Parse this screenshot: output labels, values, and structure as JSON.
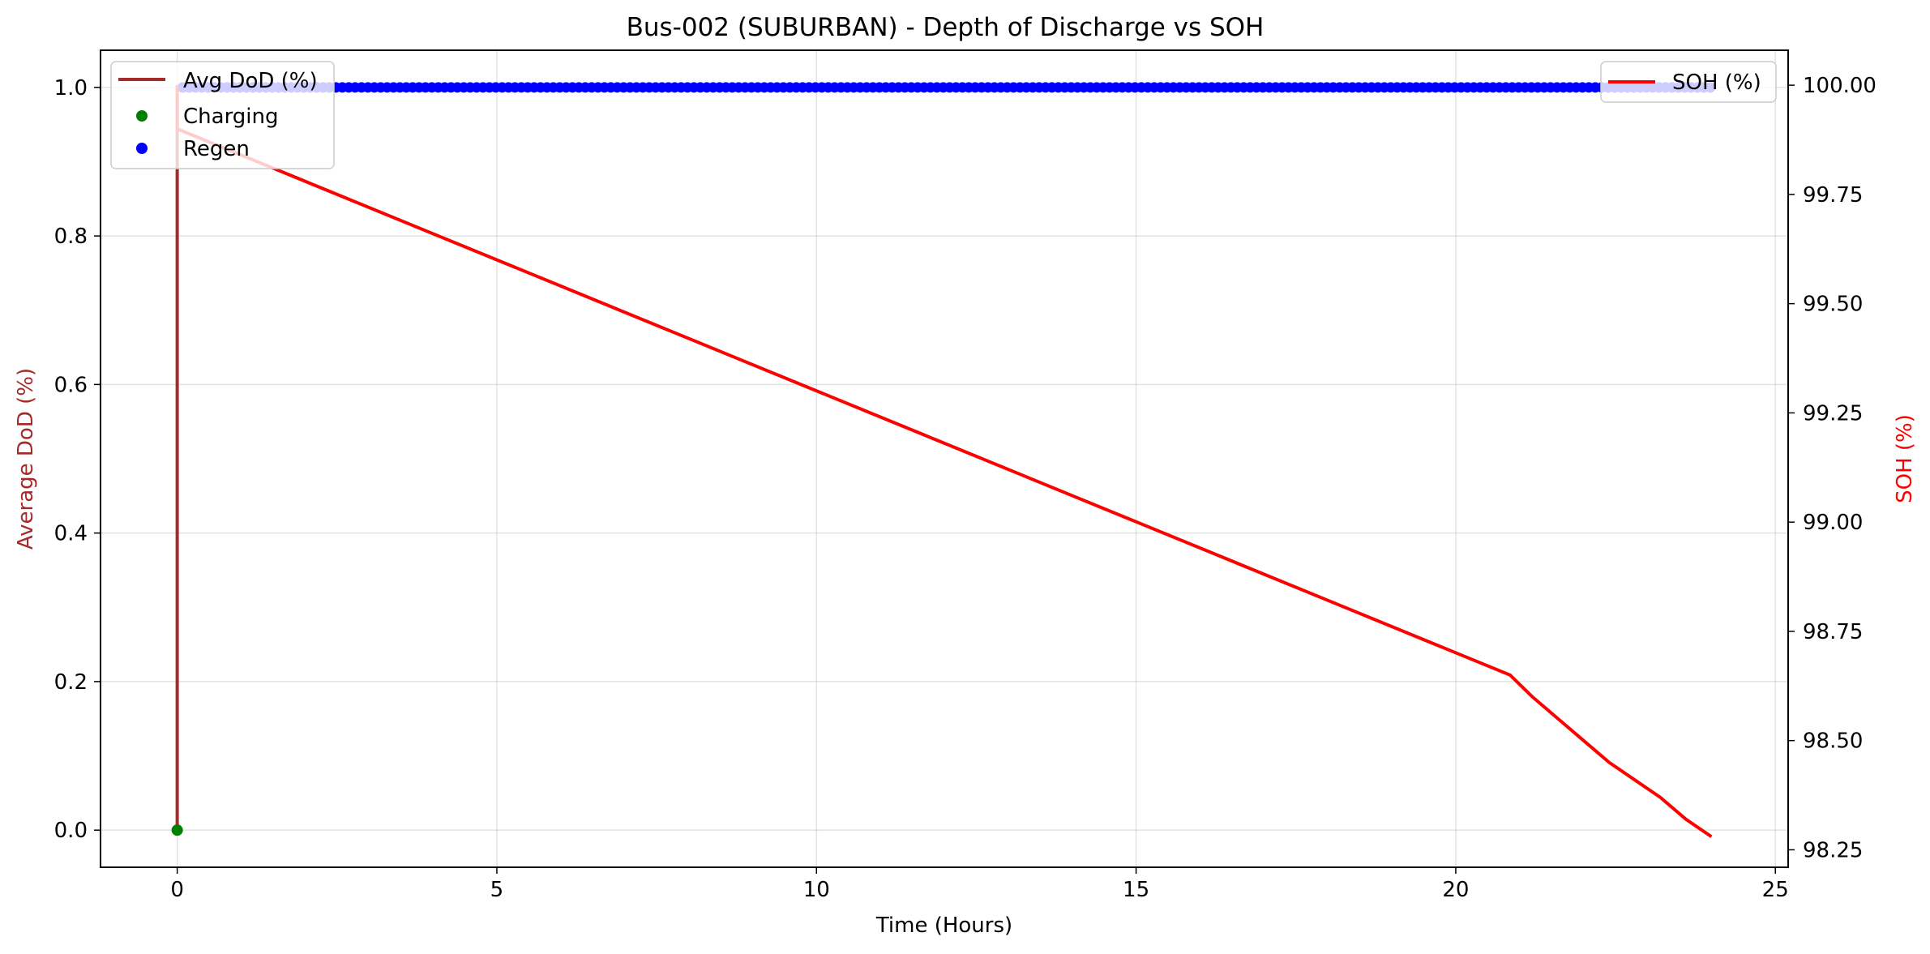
{
  "chart_data": {
    "type": "line",
    "title": "Bus-002 (SUBURBAN) - Depth of Discharge vs SOH",
    "xlabel": "Time (Hours)",
    "ylabel_left": "Average DoD (%)",
    "ylabel_right": "SOH (%)",
    "xlim": [
      -1.2,
      25.2
    ],
    "ylim_left": [
      -0.05,
      1.05
    ],
    "ylim_right": [
      98.21,
      100.08
    ],
    "x_ticks": [
      "0",
      "5",
      "10",
      "15",
      "20",
      "25"
    ],
    "y_left_ticks": [
      "0.0",
      "0.2",
      "0.4",
      "0.6",
      "0.8",
      "1.0"
    ],
    "y_right_ticks": [
      "98.25",
      "98.50",
      "98.75",
      "99.00",
      "99.25",
      "99.50",
      "99.75",
      "100.00"
    ],
    "grid": true,
    "legend_left": {
      "placement": "upper-left",
      "entries": [
        "Avg DoD (%)",
        "Charging",
        "Regen"
      ]
    },
    "legend_right": {
      "placement": "upper-right",
      "entries": [
        "SOH (%)"
      ]
    },
    "colors": {
      "avg_dod": "#a52a2a",
      "charging": "#008000",
      "regen": "#0000ff",
      "soh": "#ff0000",
      "left_label": "#a52a2a",
      "right_label": "#ff0000"
    },
    "series": [
      {
        "name": "Avg DoD (%)",
        "axis": "left",
        "kind": "line",
        "x": [
          0,
          0,
          0
        ],
        "y": [
          0.0,
          1.0,
          1.0
        ]
      },
      {
        "name": "Charging",
        "axis": "left",
        "kind": "scatter",
        "x": [
          0
        ],
        "y": [
          0.0
        ]
      },
      {
        "name": "Regen",
        "axis": "left",
        "kind": "scatter",
        "x_start": 0.083,
        "x_end": 24.0,
        "x_step": 0.1,
        "y": 1.0
      },
      {
        "name": "SOH (%)",
        "axis": "right",
        "kind": "line",
        "x": [
          0,
          0,
          20.85,
          21.2,
          21.6,
          22.0,
          22.4,
          22.8,
          23.2,
          23.6,
          24.0
        ],
        "y": [
          100.0,
          99.9,
          98.65,
          98.6,
          98.55,
          98.5,
          98.45,
          98.41,
          98.37,
          98.32,
          98.28
        ]
      }
    ]
  }
}
